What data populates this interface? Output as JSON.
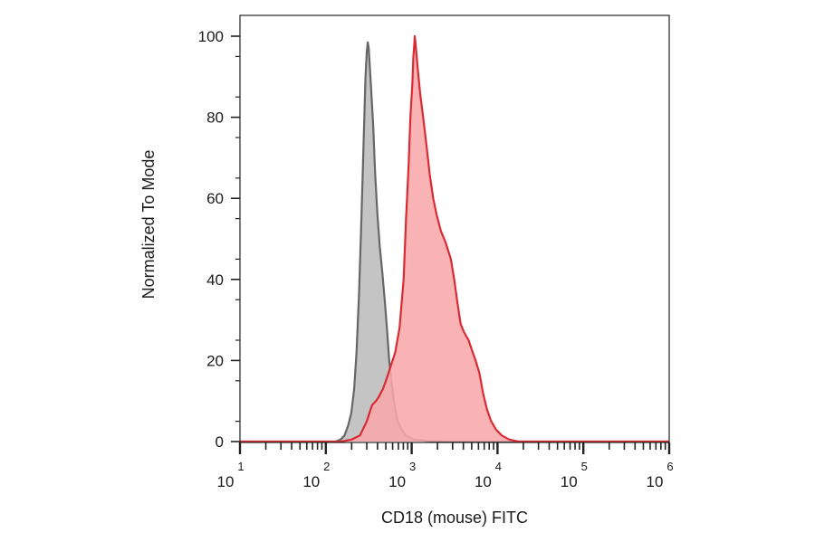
{
  "chart_data": {
    "type": "area",
    "xlabel": "CD18 (mouse) FITC",
    "ylabel": "Normalized To Mode",
    "x_scale": "log",
    "xlim": [
      10,
      1000000
    ],
    "ylim": [
      0,
      100
    ],
    "yticks": [
      0,
      20,
      40,
      60,
      80,
      100
    ],
    "xticks": [
      {
        "value": 10,
        "base": "10",
        "exp": "1"
      },
      {
        "value": 100,
        "base": "10",
        "exp": "2"
      },
      {
        "value": 1000,
        "base": "10",
        "exp": "3"
      },
      {
        "value": 10000,
        "base": "10",
        "exp": "4"
      },
      {
        "value": 100000,
        "base": "10",
        "exp": "5"
      },
      {
        "value": 1000000,
        "base": "10",
        "exp": "6"
      }
    ],
    "grid": false,
    "series": [
      {
        "color": "#666666",
        "fill": "#c4c4c4",
        "points": [
          [
            10,
            0
          ],
          [
            130,
            0
          ],
          [
            148,
            0.5
          ],
          [
            165,
            1.5
          ],
          [
            182,
            4
          ],
          [
            198,
            7
          ],
          [
            214,
            13
          ],
          [
            228,
            22
          ],
          [
            243,
            36
          ],
          [
            257,
            52
          ],
          [
            268,
            65
          ],
          [
            280,
            79
          ],
          [
            290,
            90
          ],
          [
            300,
            96
          ],
          [
            308,
            98.5
          ],
          [
            316,
            97
          ],
          [
            326,
            92
          ],
          [
            339,
            86
          ],
          [
            356,
            78
          ],
          [
            376,
            66
          ],
          [
            399,
            56
          ],
          [
            425,
            48
          ],
          [
            454,
            42
          ],
          [
            485,
            35
          ],
          [
            515,
            28
          ],
          [
            548,
            20
          ],
          [
            588,
            14
          ],
          [
            630,
            9
          ],
          [
            686,
            5
          ],
          [
            763,
            3
          ],
          [
            853,
            1.5
          ],
          [
            1050,
            0.5
          ],
          [
            1450,
            0.2
          ],
          [
            2400,
            0
          ],
          [
            1000000,
            0
          ]
        ]
      },
      {
        "color": "#d92b34",
        "fill": "#f9a8aa",
        "points": [
          [
            10,
            0
          ],
          [
            150,
            0
          ],
          [
            200,
            0.5
          ],
          [
            250,
            1.5
          ],
          [
            300,
            5
          ],
          [
            345,
            9
          ],
          [
            383,
            10
          ],
          [
            413,
            11
          ],
          [
            463,
            13
          ],
          [
            502,
            15
          ],
          [
            558,
            18
          ],
          [
            642,
            22
          ],
          [
            722,
            28
          ],
          [
            806,
            40
          ],
          [
            861,
            55
          ],
          [
            921,
            68
          ],
          [
            967,
            80
          ],
          [
            1016,
            88
          ],
          [
            1048,
            95
          ],
          [
            1073,
            98
          ],
          [
            1087,
            100
          ],
          [
            1114,
            98
          ],
          [
            1164,
            93
          ],
          [
            1253,
            86
          ],
          [
            1362,
            80
          ],
          [
            1473,
            74
          ],
          [
            1621,
            66
          ],
          [
            1783,
            60
          ],
          [
            1952,
            56
          ],
          [
            2185,
            52
          ],
          [
            2500,
            49
          ],
          [
            2860,
            45
          ],
          [
            3131,
            40
          ],
          [
            3424,
            34
          ],
          [
            3717,
            29
          ],
          [
            4072,
            27
          ],
          [
            4607,
            25
          ],
          [
            5140,
            22
          ],
          [
            5560,
            20
          ],
          [
            6130,
            17
          ],
          [
            6780,
            12
          ],
          [
            7520,
            8
          ],
          [
            8440,
            5
          ],
          [
            9590,
            3
          ],
          [
            11230,
            1.5
          ],
          [
            13760,
            0.5
          ],
          [
            17500,
            0
          ],
          [
            1000000,
            0
          ]
        ]
      }
    ]
  }
}
